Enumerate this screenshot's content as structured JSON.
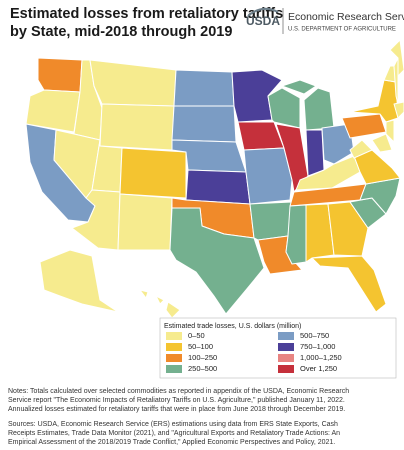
{
  "header": {
    "title_lines": [
      "Estimated losses from retaliatory tariffs",
      "by State, mid-2018 through 2019"
    ],
    "logo": "USDA",
    "agency": "Economic Research Service",
    "department": "U.S. DEPARTMENT OF AGRICULTURE"
  },
  "legend": {
    "title": "Estimated trade losses, U.S. dollars (million)",
    "items": [
      {
        "label": "0–50",
        "color": "#f6eb8e"
      },
      {
        "label": "50–100",
        "color": "#f4c430"
      },
      {
        "label": "100–250",
        "color": "#f08a2a"
      },
      {
        "label": "250–500",
        "color": "#74b08f"
      },
      {
        "label": "500–750",
        "color": "#7b9cc4"
      },
      {
        "label": "750–1,000",
        "color": "#4b3f98"
      },
      {
        "label": "1,000–1,250",
        "color": "#e88482"
      },
      {
        "label": "Over 1,250",
        "color": "#c5303b"
      }
    ]
  },
  "notes": [
    "Notes: Totals calculated over selected commodities as reported in appendix of the USDA, Economic Research",
    "Service report \"The Economic Impacts of Retaliatory Tariffs on U.S. Agriculture,\" published January 11, 2022.",
    "Annualized losses estimated for retaliatory tariffs that were in place from June 2018 through December 2019."
  ],
  "sources": [
    "Sources: USDA, Economic Research Service (ERS) estimations using data from ERS State Exports, Cash",
    "Receipts Estimates, Trade Data Monitor (2021), and \"Agricultural Exports and Retaliatory Trade Actions: An",
    "Empirical Assessment of the 2018/2019 Trade Conflict,\" Applied Economic Perspectives and Policy, 2021."
  ]
}
